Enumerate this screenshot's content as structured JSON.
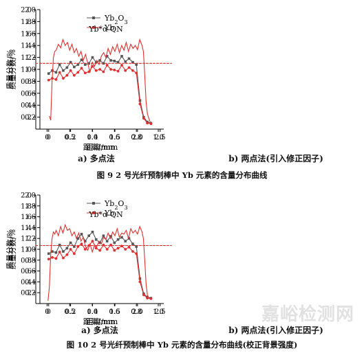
{
  "figures": [
    {
      "caption": "图 9 2 号光纤预制棒中 Yb 元素的含量分布曲线",
      "panel_a_label": "a) 多点法",
      "panel_b_label": "b) 两点法(引入修正因子)"
    },
    {
      "caption": "图 10 2 号光纤预制棒中 Yb 元素的含量分布曲线(校正背景强度)",
      "panel_a_label": "a) 多点法",
      "panel_b_label": "b) 两点法(引入修正因子)"
    }
  ],
  "watermark": "嘉峪检测网",
  "chart_data": [
    {
      "type": "line",
      "xlabel": "距离/mm",
      "ylabel": "质量分数/%",
      "xlim": [
        -0.08,
        1.05
      ],
      "ylim": [
        0,
        2.0
      ],
      "xticks": [
        0,
        0.2,
        0.4,
        0.6,
        0.8,
        1.0
      ],
      "yticks": [
        0.2,
        0.4,
        0.6,
        0.8,
        1.0,
        1.2,
        1.4,
        1.6,
        1.8,
        2.0
      ],
      "reference_line": 1.1,
      "legend": "top-left",
      "x": [
        0,
        0.033,
        0.067,
        0.1,
        0.133,
        0.167,
        0.2,
        0.233,
        0.267,
        0.3,
        0.333,
        0.367,
        0.4,
        0.433,
        0.467,
        0.5,
        0.533,
        0.567,
        0.6,
        0.633,
        0.667,
        0.7,
        0.733,
        0.767,
        0.8,
        0.833,
        0.867,
        0.9,
        0.933
      ],
      "series": [
        {
          "name": "Yb2O3",
          "color": "#555555",
          "marker": "square",
          "values": [
            0.93,
            0.98,
            0.95,
            1.08,
            0.98,
            1.03,
            1.12,
            1.04,
            1.08,
            1.16,
            1.08,
            1.1,
            1.2,
            1.12,
            1.15,
            1.1,
            1.22,
            1.15,
            1.14,
            1.12,
            1.22,
            1.13,
            1.18,
            1.12,
            1.08,
            0.48,
            0.2,
            0.12,
            0.1
          ]
        },
        {
          "name": "Yb",
          "color": "#e03030",
          "marker": "circle",
          "values": [
            0.82,
            0.85,
            0.83,
            0.95,
            0.85,
            0.9,
            0.98,
            0.9,
            0.95,
            1.02,
            0.94,
            0.96,
            1.05,
            0.98,
            1.0,
            0.96,
            1.07,
            1.0,
            0.99,
            0.97,
            1.07,
            0.98,
            1.03,
            0.98,
            0.94,
            0.42,
            0.18,
            0.1,
            0.09
          ]
        }
      ]
    },
    {
      "type": "line",
      "title": "Yb*α-QN",
      "xlabel": "距离/mm",
      "ylabel": "质量分数/%",
      "xlim": [
        -0.25,
        2.55
      ],
      "ylim": [
        0,
        2.0
      ],
      "xticks": [
        0,
        0.5,
        1.0,
        1.5,
        2.0,
        2.5
      ],
      "yticks": [
        0.2,
        0.4,
        0.6,
        0.8,
        1.0,
        1.2,
        1.4,
        1.6,
        1.8,
        2.0
      ],
      "reference_line": 1.1,
      "series": [
        {
          "name": "",
          "color": "#e03030",
          "x": [
            0.05,
            0.08,
            0.11,
            0.14,
            0.17,
            0.2,
            0.25,
            0.3,
            0.35,
            0.4,
            0.45,
            0.5,
            0.55,
            0.6,
            0.65,
            0.7,
            0.75,
            0.8,
            0.85,
            0.9,
            0.95,
            1.0,
            1.05,
            1.1,
            1.15,
            1.2,
            1.25,
            1.3,
            1.35,
            1.4,
            1.45,
            1.5,
            1.55,
            1.6,
            1.65,
            1.7,
            1.75,
            1.8,
            1.85,
            1.9,
            1.95,
            2.0,
            2.05,
            2.1,
            2.13,
            2.16,
            2.19,
            2.22,
            2.25,
            2.28
          ],
          "values": [
            0.22,
            0.15,
            0.8,
            1.2,
            1.3,
            1.32,
            1.42,
            1.36,
            1.5,
            1.4,
            1.45,
            1.32,
            1.42,
            1.28,
            1.35,
            1.22,
            1.3,
            1.15,
            1.25,
            1.1,
            0.95,
            1.12,
            1.05,
            1.15,
            1.08,
            1.22,
            1.28,
            1.2,
            1.35,
            1.25,
            1.38,
            1.3,
            1.42,
            1.28,
            1.4,
            1.32,
            1.45,
            1.3,
            1.42,
            1.35,
            1.4,
            1.33,
            1.5,
            1.4,
            1.3,
            0.9,
            0.45,
            0.25,
            0.18,
            0.12
          ]
        }
      ]
    },
    {
      "type": "line",
      "xlabel": "距离/mm",
      "ylabel": "质量分数/%",
      "xlim": [
        -0.08,
        1.05
      ],
      "ylim": [
        0,
        2.0
      ],
      "xticks": [
        0,
        0.2,
        0.4,
        0.6,
        0.8,
        1.0
      ],
      "yticks": [
        0.2,
        0.4,
        0.6,
        0.8,
        1.0,
        1.2,
        1.4,
        1.6,
        1.8,
        2.0
      ],
      "reference_line": 1.07,
      "legend": "top-left",
      "x": [
        0,
        0.033,
        0.067,
        0.1,
        0.133,
        0.167,
        0.2,
        0.233,
        0.267,
        0.3,
        0.333,
        0.367,
        0.4,
        0.433,
        0.467,
        0.5,
        0.533,
        0.567,
        0.6,
        0.633,
        0.667,
        0.7,
        0.733,
        0.767,
        0.8,
        0.833,
        0.867,
        0.9,
        0.933
      ],
      "series": [
        {
          "name": "Yb2O3",
          "color": "#555555",
          "marker": "square",
          "values": [
            0.92,
            0.96,
            0.94,
            1.08,
            0.96,
            1.02,
            1.12,
            1.05,
            1.2,
            1.28,
            1.15,
            1.25,
            1.32,
            1.18,
            1.12,
            1.25,
            1.15,
            1.24,
            1.12,
            1.18,
            1.22,
            1.15,
            1.2,
            1.1,
            1.05,
            0.46,
            0.18,
            0.12,
            0.1
          ]
        },
        {
          "name": "Yb",
          "color": "#e03030",
          "marker": "circle",
          "values": [
            0.82,
            0.85,
            0.83,
            0.95,
            0.84,
            0.9,
            1.0,
            0.92,
            1.05,
            1.1,
            1.0,
            1.07,
            1.15,
            1.02,
            0.98,
            1.08,
            1.0,
            1.08,
            0.98,
            1.02,
            1.06,
            1.0,
            1.04,
            0.96,
            0.92,
            0.4,
            0.16,
            0.1,
            0.09
          ]
        }
      ]
    },
    {
      "type": "line",
      "title": "Yb*α-QN",
      "xlabel": "距离/mm",
      "ylabel": "质量分数/%",
      "xlim": [
        -0.25,
        2.55
      ],
      "ylim": [
        0,
        2.0
      ],
      "xticks": [
        0,
        0.5,
        1.0,
        1.5,
        2.0,
        2.5
      ],
      "yticks": [
        0.2,
        0.4,
        0.6,
        0.8,
        1.0,
        1.2,
        1.4,
        1.6,
        1.8,
        2.0
      ],
      "reference_line": 1.07,
      "series": [
        {
          "name": "",
          "color": "#e03030",
          "x": [
            0.02,
            0.05,
            0.08,
            0.11,
            0.14,
            0.17,
            0.2,
            0.25,
            0.3,
            0.35,
            0.4,
            0.45,
            0.5,
            0.55,
            0.6,
            0.65,
            0.7,
            0.75,
            0.8,
            0.85,
            0.9,
            0.95,
            1.0,
            1.05,
            1.1,
            1.15,
            1.2,
            1.25,
            1.3,
            1.35,
            1.4,
            1.45,
            1.5,
            1.55,
            1.6,
            1.65,
            1.7,
            1.75,
            1.8,
            1.85,
            1.9,
            1.95,
            2.0,
            2.05,
            2.1,
            2.13,
            2.16,
            2.19,
            2.22,
            2.25
          ],
          "values": [
            0.05,
            0.3,
            0.9,
            1.2,
            1.32,
            1.28,
            1.35,
            1.25,
            1.42,
            1.3,
            1.45,
            1.35,
            1.38,
            1.25,
            1.32,
            1.2,
            1.3,
            1.15,
            1.22,
            1.05,
            0.98,
            1.1,
            0.95,
            1.08,
            1.05,
            1.15,
            1.1,
            1.22,
            1.18,
            1.3,
            1.2,
            1.32,
            1.25,
            1.38,
            1.22,
            1.3,
            1.28,
            1.35,
            1.2,
            1.38,
            1.3,
            1.35,
            1.28,
            1.42,
            1.32,
            1.2,
            0.8,
            0.35,
            0.15,
            0.1
          ]
        }
      ]
    }
  ]
}
